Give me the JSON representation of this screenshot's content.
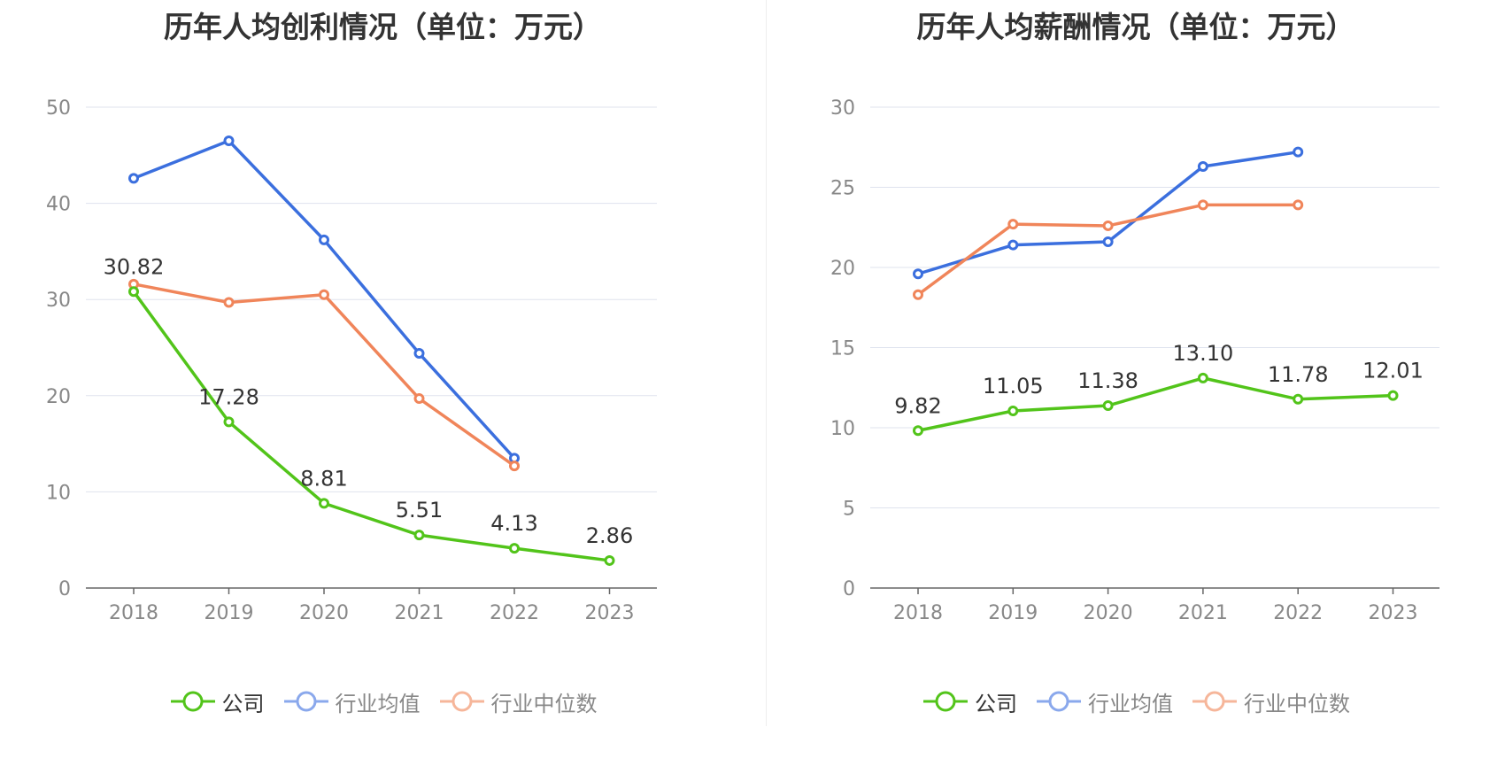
{
  "colors": {
    "company": "#52c41a",
    "avg": "#3b6fde",
    "median": "#f0855a",
    "grid": "#dfe3ee",
    "axis_text": "#888888",
    "label_text": "#333333"
  },
  "legend_labels": [
    "公司",
    "行业均值",
    "行业中位数"
  ],
  "chart_data": [
    {
      "type": "line",
      "title": "历年人均创利情况（单位：万元）",
      "categories": [
        "2018",
        "2019",
        "2020",
        "2021",
        "2022",
        "2023"
      ],
      "ylim": [
        0,
        50
      ],
      "yticks": [
        "0",
        "10",
        "20",
        "30",
        "40",
        "50"
      ],
      "grid": true,
      "legend_position": "bottom",
      "series": [
        {
          "name": "公司",
          "values": [
            30.82,
            17.28,
            8.81,
            5.51,
            4.13,
            2.86
          ],
          "labels": [
            "30.82",
            "17.28",
            "8.81",
            "5.51",
            "4.13",
            "2.86"
          ]
        },
        {
          "name": "行业均值",
          "values": [
            42.6,
            46.5,
            36.2,
            24.4,
            13.5,
            null
          ]
        },
        {
          "name": "行业中位数",
          "values": [
            31.6,
            29.7,
            30.5,
            19.7,
            12.7,
            null
          ]
        }
      ]
    },
    {
      "type": "line",
      "title": "历年人均薪酬情况（单位：万元）",
      "categories": [
        "2018",
        "2019",
        "2020",
        "2021",
        "2022",
        "2023"
      ],
      "ylim": [
        0,
        30
      ],
      "yticks": [
        "0",
        "5",
        "10",
        "15",
        "20",
        "25",
        "30"
      ],
      "grid": true,
      "legend_position": "bottom",
      "series": [
        {
          "name": "公司",
          "values": [
            9.82,
            11.05,
            11.38,
            13.1,
            11.78,
            12.01
          ],
          "labels": [
            "9.82",
            "11.05",
            "11.38",
            "13.10",
            "11.78",
            "12.01"
          ]
        },
        {
          "name": "行业均值",
          "values": [
            19.6,
            21.4,
            21.6,
            26.3,
            27.2,
            null
          ]
        },
        {
          "name": "行业中位数",
          "values": [
            18.3,
            22.7,
            22.6,
            23.9,
            23.9,
            null
          ]
        }
      ]
    }
  ]
}
